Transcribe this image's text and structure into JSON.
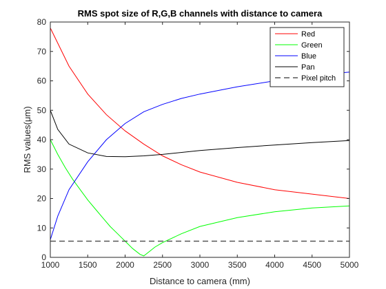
{
  "chart_data": {
    "type": "line",
    "title": "RMS spot size of R,G,B channels with distance to camera",
    "xlabel": "Distance to camera (mm)",
    "ylabel": "RMS values(μm)",
    "xlim": [
      1000,
      5000
    ],
    "ylim": [
      0,
      80
    ],
    "xticks": [
      "1000",
      "1500",
      "2000",
      "2500",
      "3000",
      "3500",
      "4000",
      "4500",
      "5000"
    ],
    "yticks": [
      "0",
      "10",
      "20",
      "30",
      "40",
      "50",
      "60",
      "70",
      "80"
    ],
    "grid": false,
    "legend_position": "top-right",
    "series": [
      {
        "name": "Red",
        "color": "#ff0000",
        "style": "solid",
        "x": [
          1000,
          1250,
          1500,
          1750,
          2000,
          2250,
          2500,
          2750,
          3000,
          3500,
          4000,
          4500,
          5000
        ],
        "y": [
          78,
          65,
          55.5,
          48.5,
          43,
          38.5,
          34.5,
          31.5,
          29,
          25.5,
          23,
          21.5,
          20
        ]
      },
      {
        "name": "Green",
        "color": "#00ff00",
        "style": "solid",
        "x": [
          1000,
          1100,
          1200,
          1300,
          1400,
          1500,
          1600,
          1700,
          1800,
          1900,
          2000,
          2100,
          2200,
          2250,
          2300,
          2400,
          2500,
          2750,
          3000,
          3500,
          4000,
          4500,
          5000
        ],
        "y": [
          40,
          35,
          30.5,
          26.5,
          23,
          19.5,
          16.5,
          13.5,
          10.5,
          8,
          5.5,
          3,
          1,
          0.5,
          1.5,
          3.5,
          5,
          8,
          10.5,
          13.5,
          15.5,
          16.8,
          17.5
        ]
      },
      {
        "name": "Blue",
        "color": "#0000ff",
        "style": "solid",
        "x": [
          1000,
          1100,
          1250,
          1500,
          1750,
          2000,
          2250,
          2500,
          2750,
          3000,
          3500,
          4000,
          4500,
          5000
        ],
        "y": [
          6,
          14,
          23,
          32.5,
          40,
          45.5,
          49.5,
          52,
          54,
          55.5,
          58,
          60,
          61.8,
          63
        ]
      },
      {
        "name": "Pan",
        "color": "#000000",
        "style": "solid",
        "x": [
          1000,
          1100,
          1250,
          1500,
          1750,
          2000,
          2250,
          2500,
          3000,
          3500,
          4000,
          4500,
          5000
        ],
        "y": [
          50,
          43.5,
          38.5,
          35.5,
          34.3,
          34.2,
          34.5,
          35,
          36.3,
          37.3,
          38.2,
          39,
          39.7
        ]
      },
      {
        "name": "Pixel pitch",
        "color": "#555555",
        "style": "dashed",
        "x": [
          1000,
          5000
        ],
        "y": [
          5.5,
          5.5
        ]
      }
    ]
  }
}
